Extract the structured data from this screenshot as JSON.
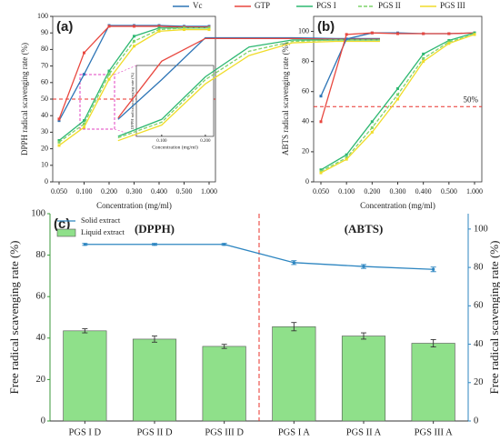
{
  "chart_data": [
    {
      "type": "line",
      "panel_label": "(a)",
      "categories": [
        "0.050",
        "0.100",
        "0.200",
        "0.300",
        "0.400",
        "0.500",
        "1.000"
      ],
      "series": [
        {
          "name": "Vc",
          "color": "#2e75b6",
          "values": [
            37,
            65,
            94.5,
            94.5,
            94.5,
            94,
            94
          ]
        },
        {
          "name": "GTP",
          "color": "#e8473f",
          "values": [
            38,
            78,
            94,
            94,
            94,
            93.5,
            93.5
          ]
        },
        {
          "name": "PGS I",
          "color": "#2eb872",
          "values": [
            25,
            37,
            67,
            88,
            93,
            93,
            93
          ]
        },
        {
          "name": "PGS II",
          "color": "#7fd36a",
          "dash": true,
          "values": [
            24,
            35,
            65,
            85,
            92,
            93,
            93
          ]
        },
        {
          "name": "PGS III",
          "color": "#f0dc2a",
          "values": [
            22,
            33,
            62,
            82,
            91,
            92,
            92
          ]
        }
      ],
      "ylim": [
        0,
        100
      ],
      "yticks": [
        0,
        10,
        20,
        30,
        40,
        50,
        60,
        70,
        80,
        90,
        100
      ],
      "ylabel": "DPPH radical scavenging rate (%)",
      "xlabel": "Concentration (mg/ml)",
      "threshold": {
        "value": 50,
        "label": "50%",
        "color": "#e8302a"
      },
      "legend": "top",
      "inset": {
        "ylabel": "DPPH radical scavenging rate (%)",
        "xlabel": "Concentration (mg/ml)",
        "ylim": [
          25,
          75
        ]
      }
    },
    {
      "type": "line",
      "panel_label": "(b)",
      "categories": [
        "0.050",
        "0.100",
        "0.200",
        "0.300",
        "0.400",
        "0.500",
        "1.000"
      ],
      "series": [
        {
          "name": "Vc",
          "color": "#2e75b6",
          "values": [
            57,
            95,
            99,
            99,
            98.5,
            98.5,
            99
          ]
        },
        {
          "name": "GTP",
          "color": "#e8473f",
          "values": [
            40,
            98,
            99,
            98.5,
            98.5,
            98.5,
            99
          ]
        },
        {
          "name": "PGS I",
          "color": "#2eb872",
          "values": [
            8,
            18,
            40,
            62,
            85,
            94,
            99
          ]
        },
        {
          "name": "PGS II",
          "color": "#7fd36a",
          "dash": true,
          "values": [
            7,
            16,
            36,
            58,
            82,
            93,
            98
          ]
        },
        {
          "name": "PGS III",
          "color": "#f0dc2a",
          "values": [
            6,
            15,
            33,
            55,
            80,
            92,
            98
          ]
        }
      ],
      "ylim": [
        0,
        110
      ],
      "yticks": [
        0,
        20,
        40,
        60,
        80,
        100
      ],
      "ylabel": "ABTS radical scavenging rate (%)",
      "xlabel": "Concentration (mg/ml)",
      "threshold": {
        "value": 50,
        "label": "50%",
        "color": "#e8302a"
      }
    },
    {
      "type": "bar",
      "panel_label": "(c)",
      "categories": [
        "PGS I D",
        "PGS II D",
        "PGS III D",
        "PGS I A",
        "PGS II A",
        "PGS III A"
      ],
      "series": [
        {
          "name": "Solid extract",
          "type": "line",
          "axis": "y2",
          "color": "#2e86c1",
          "values": [
            92,
            92,
            92,
            82.5,
            80.5,
            79
          ],
          "errors": [
            0.5,
            0.5,
            0.5,
            1,
            1,
            1.2
          ]
        },
        {
          "name": "Liquid extract",
          "color": "#8fe08a",
          "values": [
            43.5,
            39.5,
            36,
            45.5,
            41,
            37.5
          ],
          "errors": [
            1,
            1.5,
            1,
            2,
            1.5,
            1.8
          ]
        }
      ],
      "ylim": [
        0,
        100
      ],
      "yticks": [
        0,
        20,
        40,
        60,
        80,
        100
      ],
      "y2lim": [
        0,
        108
      ],
      "y2ticks": [
        0,
        20,
        40,
        60,
        80,
        100
      ],
      "ylabel": "Free radical scavenging rate (%)",
      "y2label": "Free radical scavenging rate (%)",
      "annotations": [
        "(DPPH)",
        "(ABTS)"
      ],
      "legend": "upper left"
    }
  ]
}
